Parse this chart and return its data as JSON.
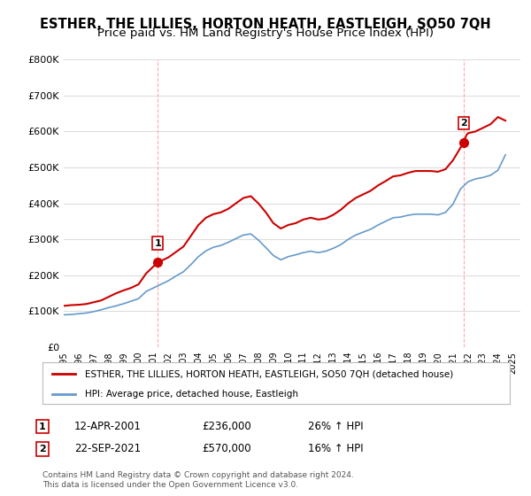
{
  "title": "ESTHER, THE LILLIES, HORTON HEATH, EASTLEIGH, SO50 7QH",
  "subtitle": "Price paid vs. HM Land Registry's House Price Index (HPI)",
  "xlabel": "",
  "ylabel": "",
  "ylim": [
    0,
    800000
  ],
  "xlim_start": 1995.0,
  "xlim_end": 2025.5,
  "yticks": [
    0,
    100000,
    200000,
    300000,
    400000,
    500000,
    600000,
    700000,
    800000
  ],
  "ytick_labels": [
    "£0",
    "£100K",
    "£200K",
    "£300K",
    "£400K",
    "£500K",
    "£600K",
    "£700K",
    "£800K"
  ],
  "xticks": [
    1995,
    1996,
    1997,
    1998,
    1999,
    2000,
    2001,
    2002,
    2003,
    2004,
    2005,
    2006,
    2007,
    2008,
    2009,
    2010,
    2011,
    2012,
    2013,
    2014,
    2015,
    2016,
    2017,
    2018,
    2019,
    2020,
    2021,
    2022,
    2023,
    2024,
    2025
  ],
  "red_color": "#cc0000",
  "blue_color": "#6699cc",
  "point1_x": 2001.28,
  "point1_y": 236000,
  "point1_label": "1",
  "point2_x": 2021.72,
  "point2_y": 570000,
  "point2_label": "2",
  "legend_line1": "ESTHER, THE LILLIES, HORTON HEATH, EASTLEIGH, SO50 7QH (detached house)",
  "legend_line2": "HPI: Average price, detached house, Eastleigh",
  "table_rows": [
    {
      "num": "1",
      "date": "12-APR-2001",
      "price": "£236,000",
      "hpi": "26% ↑ HPI"
    },
    {
      "num": "2",
      "date": "22-SEP-2021",
      "price": "£570,000",
      "hpi": "16% ↑ HPI"
    }
  ],
  "footnote": "Contains HM Land Registry data © Crown copyright and database right 2024.\nThis data is licensed under the Open Government Licence v3.0.",
  "bg_color": "#ffffff",
  "grid_color": "#dddddd",
  "vline_color": "#ffaaaa",
  "title_fontsize": 10.5,
  "subtitle_fontsize": 9.5,
  "axis_fontsize": 8,
  "red_hpi_x": [
    1995.0,
    1995.5,
    1996.0,
    1996.5,
    1997.0,
    1997.5,
    1998.0,
    1998.5,
    1999.0,
    1999.5,
    2000.0,
    2000.5,
    2001.28,
    2001.5,
    2002.0,
    2002.5,
    2003.0,
    2003.5,
    2004.0,
    2004.5,
    2005.0,
    2005.5,
    2006.0,
    2006.5,
    2007.0,
    2007.5,
    2008.0,
    2008.5,
    2009.0,
    2009.5,
    2010.0,
    2010.5,
    2011.0,
    2011.5,
    2012.0,
    2012.5,
    2013.0,
    2013.5,
    2014.0,
    2014.5,
    2015.0,
    2015.5,
    2016.0,
    2016.5,
    2017.0,
    2017.5,
    2018.0,
    2018.5,
    2019.0,
    2019.5,
    2020.0,
    2020.5,
    2021.0,
    2021.72,
    2021.9,
    2022.0,
    2022.5,
    2023.0,
    2023.5,
    2024.0,
    2024.5
  ],
  "red_hpi_y": [
    115000,
    117000,
    118000,
    120000,
    125000,
    130000,
    140000,
    150000,
    158000,
    165000,
    175000,
    205000,
    236000,
    240000,
    250000,
    265000,
    280000,
    310000,
    340000,
    360000,
    370000,
    375000,
    385000,
    400000,
    415000,
    420000,
    400000,
    375000,
    345000,
    330000,
    340000,
    345000,
    355000,
    360000,
    355000,
    358000,
    368000,
    382000,
    400000,
    415000,
    425000,
    435000,
    450000,
    462000,
    475000,
    478000,
    485000,
    490000,
    490000,
    490000,
    488000,
    495000,
    520000,
    570000,
    590000,
    595000,
    600000,
    610000,
    620000,
    640000,
    630000
  ],
  "blue_hpi_x": [
    1995.0,
    1995.5,
    1996.0,
    1996.5,
    1997.0,
    1997.5,
    1998.0,
    1998.5,
    1999.0,
    1999.5,
    2000.0,
    2000.5,
    2001.0,
    2001.5,
    2002.0,
    2002.5,
    2003.0,
    2003.5,
    2004.0,
    2004.5,
    2005.0,
    2005.5,
    2006.0,
    2006.5,
    2007.0,
    2007.5,
    2008.0,
    2008.5,
    2009.0,
    2009.5,
    2010.0,
    2010.5,
    2011.0,
    2011.5,
    2012.0,
    2012.5,
    2013.0,
    2013.5,
    2014.0,
    2014.5,
    2015.0,
    2015.5,
    2016.0,
    2016.5,
    2017.0,
    2017.5,
    2018.0,
    2018.5,
    2019.0,
    2019.5,
    2020.0,
    2020.5,
    2021.0,
    2021.5,
    2022.0,
    2022.5,
    2023.0,
    2023.5,
    2024.0,
    2024.5
  ],
  "blue_hpi_y": [
    90000,
    91000,
    93000,
    95000,
    99000,
    104000,
    110000,
    115000,
    121000,
    128000,
    135000,
    155000,
    165000,
    175000,
    185000,
    198000,
    210000,
    230000,
    252000,
    268000,
    278000,
    283000,
    292000,
    302000,
    312000,
    315000,
    298000,
    277000,
    255000,
    243000,
    252000,
    257000,
    263000,
    267000,
    263000,
    267000,
    275000,
    285000,
    300000,
    312000,
    320000,
    328000,
    340000,
    350000,
    360000,
    362000,
    367000,
    370000,
    370000,
    370000,
    368000,
    375000,
    398000,
    440000,
    460000,
    468000,
    472000,
    478000,
    492000,
    535000
  ]
}
